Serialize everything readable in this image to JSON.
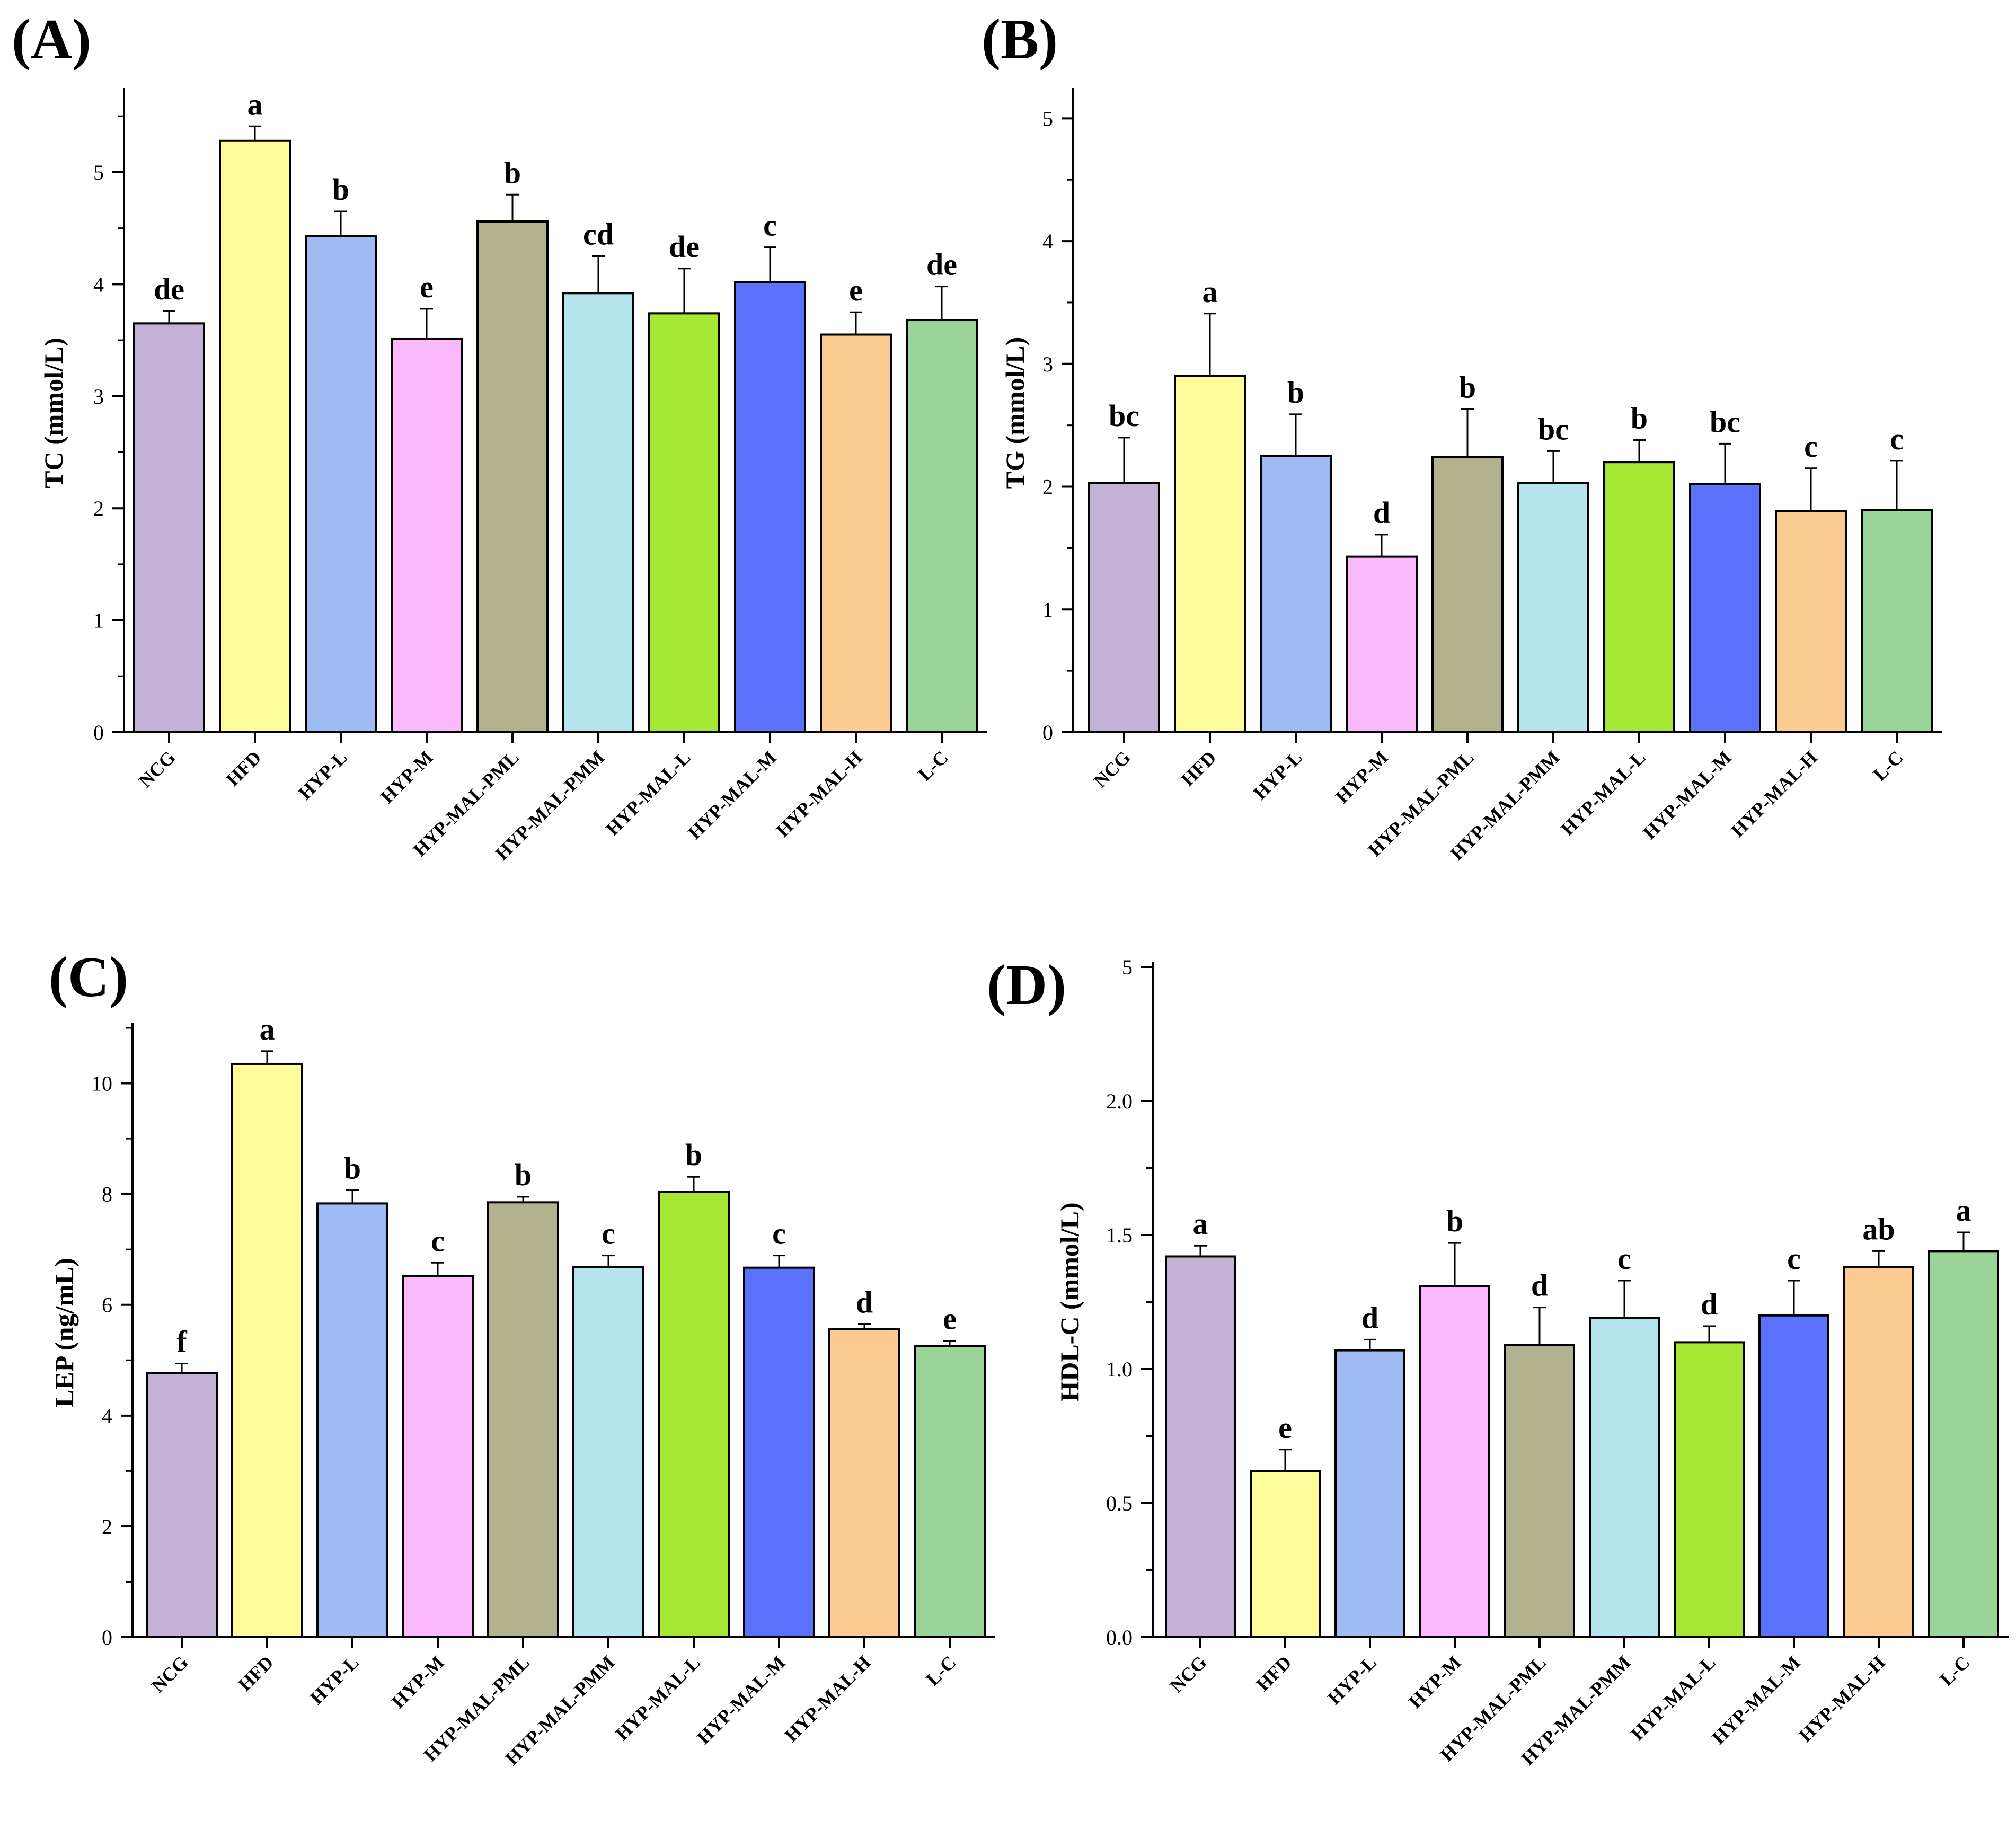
{
  "figure": {
    "categories": [
      "NCG",
      "HFD",
      "HYP-L",
      "HYP-M",
      "HYP-MAL-PML",
      "HYP-MAL-PMM",
      "HYP-MAL-L",
      "HYP-MAL-M",
      "HYP-MAL-H",
      "L-C"
    ],
    "colors": [
      "#c3b1d6",
      "#fdfc9b",
      "#9ebcf3",
      "#fbb9fb",
      "#b2b28f",
      "#b4e5ec",
      "#a6e734",
      "#5a72fc",
      "#fccb90",
      "#9ad498"
    ]
  },
  "chart_data": [
    {
      "id": "A",
      "panel_label": "(A)",
      "type": "bar",
      "ylabel": "TC (mmol/L)",
      "ylim": [
        0,
        5.7
      ],
      "yticks": [
        0,
        1,
        2,
        3,
        4,
        5
      ],
      "ytick_labels": [
        "0",
        "1",
        "2",
        "3",
        "4",
        "5"
      ],
      "values": [
        3.65,
        5.28,
        4.43,
        3.51,
        4.56,
        3.92,
        3.74,
        4.02,
        3.55,
        3.68
      ],
      "errors": [
        0.11,
        0.13,
        0.22,
        0.27,
        0.24,
        0.33,
        0.4,
        0.31,
        0.2,
        0.3
      ],
      "significance": [
        "de",
        "a",
        "b",
        "e",
        "b",
        "cd",
        "de",
        "c",
        "e",
        "de"
      ]
    },
    {
      "id": "B",
      "panel_label": "(B)",
      "type": "bar",
      "ylabel": "TG (mmol/L)",
      "ylim": [
        0,
        5.2
      ],
      "yticks": [
        0,
        1,
        2,
        3,
        4,
        5
      ],
      "ytick_labels": [
        "0",
        "1",
        "2",
        "3",
        "4",
        "5"
      ],
      "values": [
        2.03,
        2.9,
        2.25,
        1.43,
        2.24,
        2.03,
        2.2,
        2.02,
        1.8,
        1.81
      ],
      "errors": [
        0.37,
        0.51,
        0.34,
        0.18,
        0.39,
        0.26,
        0.18,
        0.33,
        0.35,
        0.4
      ],
      "significance": [
        "bc",
        "a",
        "b",
        "d",
        "b",
        "bc",
        "b",
        "bc",
        "c",
        "c"
      ]
    },
    {
      "id": "C",
      "panel_label": "(C)",
      "type": "bar",
      "ylabel": "LEP (ng/mL)",
      "ylim": [
        0,
        11
      ],
      "yticks": [
        0,
        2,
        4,
        6,
        8,
        10
      ],
      "ytick_labels": [
        "0",
        "2",
        "4",
        "6",
        "8",
        "10"
      ],
      "values": [
        4.77,
        10.35,
        7.83,
        6.52,
        7.85,
        6.68,
        8.04,
        6.67,
        5.56,
        5.26
      ],
      "errors": [
        0.17,
        0.23,
        0.24,
        0.24,
        0.1,
        0.21,
        0.27,
        0.22,
        0.09,
        0.09
      ],
      "significance": [
        "f",
        "a",
        "b",
        "c",
        "b",
        "c",
        "b",
        "c",
        "d",
        "e"
      ]
    },
    {
      "id": "D",
      "panel_label": "(D)",
      "type": "bar",
      "ylabel": "HDL-C (mmol/L)",
      "ylim": [
        0,
        5
      ],
      "yticks": [
        0,
        0.5,
        1.0,
        1.5,
        2.0,
        5
      ],
      "ytick_labels": [
        "0.0",
        "0.5",
        "1.0",
        "1.5",
        "2.0",
        "5"
      ],
      "axis_break": true,
      "values": [
        1.42,
        0.62,
        1.07,
        1.31,
        1.09,
        1.19,
        1.1,
        1.2,
        1.38,
        1.44
      ],
      "errors": [
        0.04,
        0.08,
        0.04,
        0.16,
        0.14,
        0.14,
        0.06,
        0.13,
        0.06,
        0.07
      ],
      "significance": [
        "a",
        "e",
        "d",
        "b",
        "d",
        "c",
        "d",
        "c",
        "ab",
        "a"
      ]
    }
  ]
}
